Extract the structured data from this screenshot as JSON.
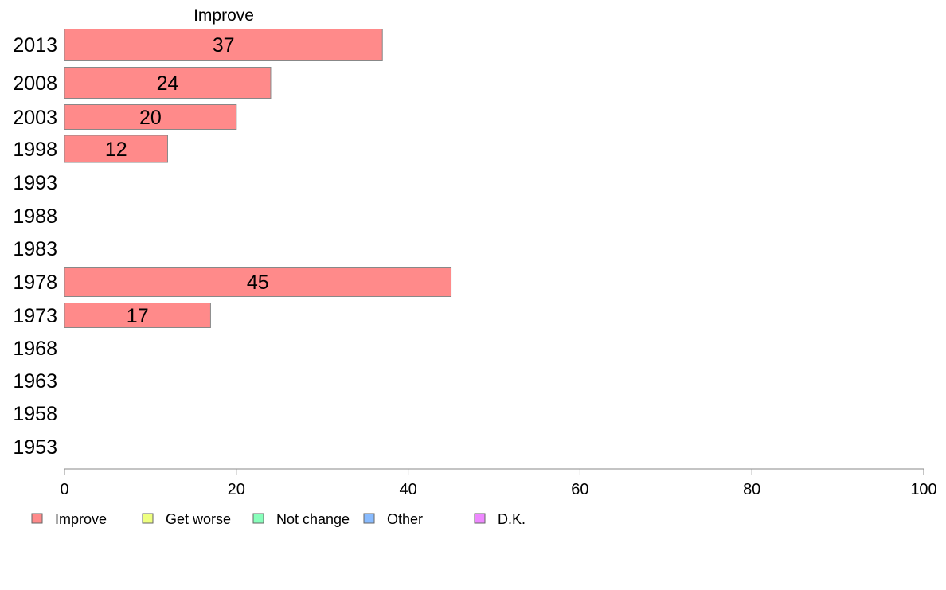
{
  "chart_data": {
    "type": "bar",
    "orientation": "horizontal",
    "title": "Improve",
    "categories": [
      "2013",
      "2008",
      "2003",
      "1998",
      "1993",
      "1988",
      "1983",
      "1978",
      "1973",
      "1968",
      "1963",
      "1958",
      "1953"
    ],
    "series": [
      {
        "name": "Improve",
        "color": "#ff8a8a",
        "values": [
          37,
          24,
          20,
          12,
          null,
          null,
          null,
          45,
          17,
          null,
          null,
          null,
          null
        ]
      }
    ],
    "xlim": [
      0,
      100
    ],
    "xticks": [
      0,
      20,
      40,
      60,
      80,
      100
    ],
    "grid": false,
    "legend_position": "bottom",
    "legend": [
      {
        "label": "Improve",
        "color": "#ff8a8a"
      },
      {
        "label": "Get worse",
        "color": "#eeff80"
      },
      {
        "label": "Not change",
        "color": "#88ffbb"
      },
      {
        "label": "Other",
        "color": "#88bbff"
      },
      {
        "label": "D.K.",
        "color": "#ee88ff"
      }
    ]
  }
}
